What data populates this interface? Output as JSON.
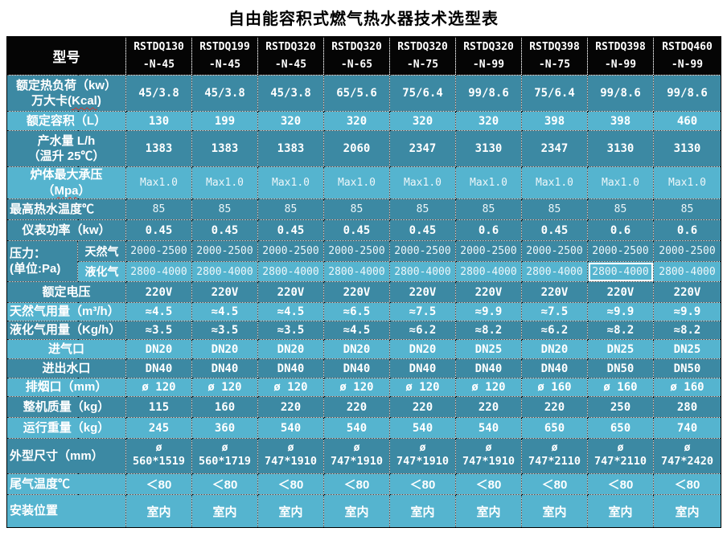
{
  "title": "自由能容积式燃气热水器技术选型表",
  "table": {
    "corner_label": "型号",
    "columns": [
      {
        "model": "RSTDQ130",
        "variant": "-N-45"
      },
      {
        "model": "RSTDQ199",
        "variant": "-N-45"
      },
      {
        "model": "RSTDQ320",
        "variant": "-N-45"
      },
      {
        "model": "RSTDQ320",
        "variant": "-N-65"
      },
      {
        "model": "RSTDQ320",
        "variant": "-N-75"
      },
      {
        "model": "RSTDQ320",
        "variant": "-N-99"
      },
      {
        "model": "RSTDQ398",
        "variant": "-N-75"
      },
      {
        "model": "RSTDQ398",
        "variant": "-N-99"
      },
      {
        "model": "RSTDQ460",
        "variant": "-N-99"
      }
    ],
    "rows": [
      {
        "id": "rated-heat-load",
        "label_lines": [
          "额定热负荷（kw）",
          "万大卡(Kcal)"
        ],
        "wavy": "Kcal",
        "align": "center",
        "shade": "dark",
        "style": "bold",
        "values": [
          "45/3.8",
          "45/3.8",
          "45/3.8",
          "65/5.6",
          "75/6.4",
          "99/8.6",
          "75/6.4",
          "99/8.6",
          "99/8.6"
        ]
      },
      {
        "id": "rated-volume",
        "label_lines": [
          "额定容积（L）"
        ],
        "align": "center",
        "shade": "light",
        "style": "bold",
        "values": [
          "130",
          "199",
          "320",
          "320",
          "320",
          "320",
          "398",
          "398",
          "460"
        ]
      },
      {
        "id": "water-output",
        "label_lines": [
          "产水量 L/h",
          "（温升 25℃）"
        ],
        "align": "center",
        "shade": "dark",
        "style": "bold",
        "values": [
          "1383",
          "1383",
          "1383",
          "2060",
          "2347",
          "3130",
          "2347",
          "3130",
          "3130"
        ]
      },
      {
        "id": "max-pressure",
        "label_lines": [
          "炉体最大承压",
          "（Mpa）"
        ],
        "wavy": "Mpa",
        "align": "center",
        "shade": "light",
        "style": "thin",
        "values": [
          "Max1.0",
          "Max1.0",
          "Max1.0",
          "Max1.0",
          "Max1.0",
          "Max1.0",
          "Max1.0",
          "Max1.0",
          "Max1.0"
        ]
      },
      {
        "id": "max-water-temp",
        "label_lines": [
          "最高热水温度℃"
        ],
        "align": "left",
        "shade": "dark",
        "style": "thin",
        "values": [
          "85",
          "85",
          "85",
          "85",
          "85",
          "85",
          "85",
          "85",
          "85"
        ]
      },
      {
        "id": "meter-power",
        "label_lines": [
          "仪表功率（kw）"
        ],
        "align": "center",
        "shade": "dark",
        "style": "bold",
        "values": [
          "0.45",
          "0.45",
          "0.45",
          "0.45",
          "0.45",
          "0.6",
          "0.45",
          "0.6",
          "0.6"
        ]
      },
      {
        "id": "gas-pressure",
        "label_lines": [
          "压力：",
          "(单位:Pa)"
        ],
        "align": "left",
        "shade": "dark",
        "sub_rows": [
          {
            "id": "natural-gas-pressure",
            "sub_label": "天然气",
            "shade": "dark",
            "style": "thin",
            "values": [
              "2000-2500",
              "2000-2500",
              "2000-2500",
              "2000-2500",
              "2000-2500",
              "2000-2500",
              "2000-2500",
              "2000-2500",
              "2000-2500"
            ]
          },
          {
            "id": "lpg-pressure",
            "sub_label": "液化气",
            "shade": "light",
            "style": "thin",
            "highlight_col": 7,
            "values": [
              "2800-4000",
              "2800-4000",
              "2800-4000",
              "2800-4000",
              "2800-4000",
              "2800-4000",
              "2800-4000",
              "2800-4000",
              "2800-4000"
            ]
          }
        ]
      },
      {
        "id": "rated-voltage",
        "label_lines": [
          "额定电压"
        ],
        "align": "center",
        "shade": "dark",
        "style": "bold",
        "values": [
          "220V",
          "220V",
          "220V",
          "220V",
          "220V",
          "220V",
          "220V",
          "220V",
          "220V"
        ]
      },
      {
        "id": "ng-consumption",
        "label_lines": [
          "天然气用量（m³/h）"
        ],
        "align": "left",
        "shade": "light",
        "style": "bold",
        "values": [
          "≈4.5",
          "≈4.5",
          "≈4.5",
          "≈6.5",
          "≈7.5",
          "≈9.9",
          "≈7.5",
          "≈9.9",
          "≈9.9"
        ]
      },
      {
        "id": "lpg-consumption",
        "label_lines": [
          "液化气用量（Kg/h）"
        ],
        "align": "left",
        "shade": "dark",
        "style": "bold",
        "values": [
          "≈3.5",
          "≈3.5",
          "≈3.5",
          "≈4.5",
          "≈6.2",
          "≈8.2",
          "≈6.2",
          "≈8.2",
          "≈8.2"
        ]
      },
      {
        "id": "gas-inlet",
        "label_lines": [
          "进气口"
        ],
        "align": "center",
        "shade": "light",
        "style": "bold",
        "values": [
          "DN20",
          "DN20",
          "DN20",
          "DN20",
          "DN20",
          "DN25",
          "DN20",
          "DN25",
          "DN25"
        ]
      },
      {
        "id": "water-ports",
        "label_lines": [
          "进出水口"
        ],
        "align": "center",
        "shade": "dark",
        "style": "bold",
        "values": [
          "DN40",
          "DN40",
          "DN40",
          "DN40",
          "DN40",
          "DN40",
          "DN40",
          "DN50",
          "DN50"
        ]
      },
      {
        "id": "flue-outlet",
        "label_lines": [
          "排烟口（mm）"
        ],
        "align": "center",
        "shade": "light",
        "style": "bold",
        "values": [
          "ø 120",
          "ø 120",
          "ø 120",
          "ø 120",
          "ø 120",
          "ø 120",
          "ø 160",
          "ø 160",
          "ø 160"
        ]
      },
      {
        "id": "unit-weight",
        "label_lines": [
          "整机质量（kg）"
        ],
        "align": "center",
        "shade": "dark",
        "style": "bold",
        "values": [
          "115",
          "160",
          "220",
          "220",
          "220",
          "220",
          "220",
          "250",
          "280"
        ]
      },
      {
        "id": "operating-weight",
        "label_lines": [
          "运行重量（kg）"
        ],
        "align": "center",
        "shade": "light",
        "style": "bold",
        "values": [
          "245",
          "360",
          "540",
          "540",
          "540",
          "540",
          "650",
          "650",
          "740"
        ]
      },
      {
        "id": "dimensions",
        "label_lines": [
          "外型尺寸（mm）"
        ],
        "align": "left",
        "shade": "dark",
        "style": "bold",
        "value_prefix_line": "ø",
        "values": [
          "560*1519",
          "560*1719",
          "747*1910",
          "747*1910",
          "747*1910",
          "747*1910",
          "747*2110",
          "747*2110",
          "747*2420"
        ]
      },
      {
        "id": "exhaust-temp",
        "label_lines": [
          "尾气温度℃"
        ],
        "align": "left",
        "shade": "light",
        "style": "bold",
        "cjk_values": true,
        "values": [
          "＜80",
          "＜80",
          "＜80",
          "＜80",
          "＜80",
          "＜80",
          "＜80",
          "＜80",
          "＜80"
        ]
      },
      {
        "id": "install-location",
        "label_lines": [
          "安装位置"
        ],
        "align": "left",
        "shade": "light",
        "style": "bold",
        "cjk_values": true,
        "values": [
          "室内",
          "室内",
          "室内",
          "室内",
          "室内",
          "室内",
          "室内",
          "室内",
          "室内"
        ]
      }
    ]
  }
}
